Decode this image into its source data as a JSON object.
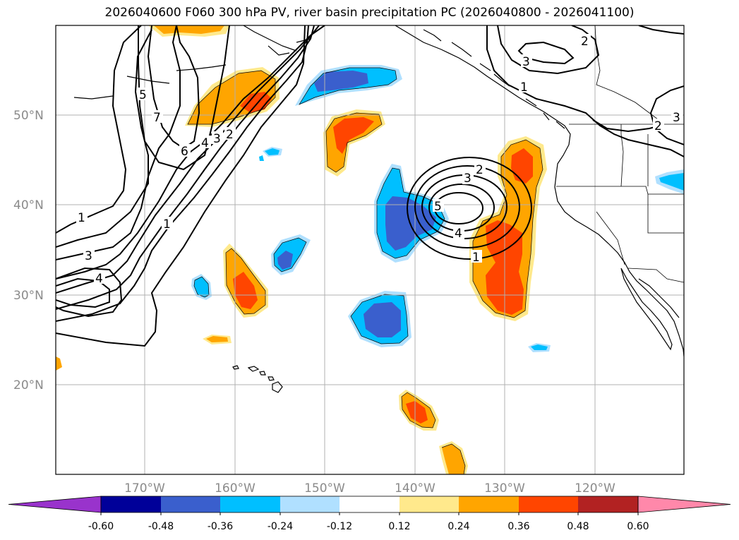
{
  "title": "2026040600 F060 300 hPa PV, river basin precipitation PC (2026040800 - 2026041100)",
  "lat_labels": [
    "50°N",
    "40°N",
    "30°N",
    "20°N"
  ],
  "lon_labels": [
    "170°W",
    "160°W",
    "150°W",
    "140°W",
    "130°W",
    "120°W"
  ],
  "colorbar": {
    "ticks": [
      "-0.60",
      "-0.48",
      "-0.36",
      "-0.24",
      "-0.12",
      "0.12",
      "0.24",
      "0.36",
      "0.48",
      "0.60"
    ],
    "colors": [
      "#9933cc",
      "#000099",
      "#3a5fcd",
      "#00bfff",
      "#b0e0ff",
      "#ffffff",
      "#ffe98c",
      "#ffa500",
      "#ff4500",
      "#b22222",
      "#ff88aa",
      "#ff88aa"
    ]
  },
  "contour_labels": {
    "low_1": "1",
    "low_2": "2",
    "low_3": "3",
    "low_4": "4",
    "low_5": "5",
    "west_1": "1",
    "west_1b": "1",
    "west_2": "2",
    "west_3": "3",
    "west_4": "4",
    "west_6": "6",
    "west_7": "7",
    "west_5": "5",
    "sw_3": "3",
    "sw_4": "4",
    "ne_2": "2",
    "ne_3": "3",
    "ne_1": "1",
    "ne_2b": "2",
    "ne_3b": "3"
  },
  "colors": {
    "background": "#ffffff",
    "grid": "#b0b0b0",
    "contour": "#000000",
    "coast": "#000000"
  }
}
